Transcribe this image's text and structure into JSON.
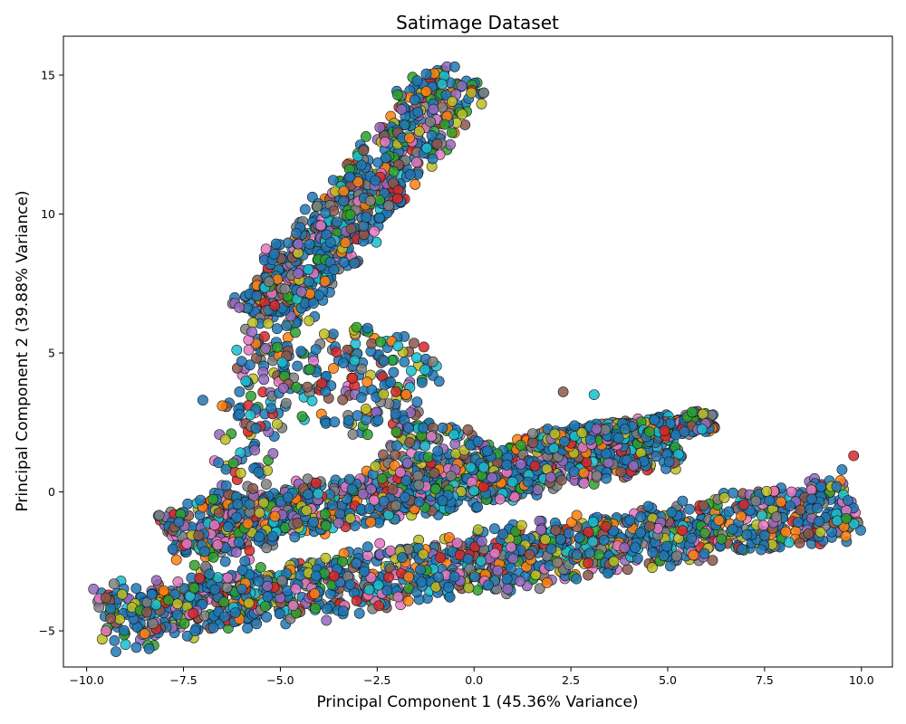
{
  "chart_data": {
    "type": "scatter",
    "title": "Satimage Dataset",
    "xlabel": "Principal Component 1 (45.36% Variance)",
    "ylabel": "Principal Component 2 (39.88% Variance)",
    "xlim": [
      -10.6,
      10.8
    ],
    "ylim": [
      -6.3,
      16.4
    ],
    "xticks": [
      -10.0,
      -7.5,
      -5.0,
      -2.5,
      0.0,
      2.5,
      5.0,
      7.5,
      10.0
    ],
    "xtick_labels": [
      "−10.0",
      "−7.5",
      "−5.0",
      "−2.5",
      "0.0",
      "2.5",
      "5.0",
      "7.5",
      "10.0"
    ],
    "yticks": [
      -5,
      0,
      5,
      10,
      15
    ],
    "ytick_labels": [
      "−5",
      "0",
      "5",
      "10",
      "15"
    ],
    "grid": false,
    "legend": "none",
    "palette": [
      "#1f77b4",
      "#ff7f0e",
      "#2ca02c",
      "#d62728",
      "#9467bd",
      "#8c564b",
      "#e377c2",
      "#7f7f7f",
      "#bcbd22",
      "#17becf"
    ],
    "dominant_color": "#1f77b4",
    "regions": [
      {
        "kind": "band",
        "x0": -9.6,
        "y0": -4.6,
        "x1": 9.8,
        "y1": -0.5,
        "halfwidth": 1.3,
        "count": 1500
      },
      {
        "kind": "band",
        "x0": -8.0,
        "y0": -1.6,
        "x1": 5.2,
        "y1": 1.9,
        "halfwidth": 1.1,
        "count": 1200
      },
      {
        "kind": "band",
        "x0": 1.5,
        "y0": 1.8,
        "x1": 6.2,
        "y1": 2.6,
        "halfwidth": 0.45,
        "count": 320
      },
      {
        "kind": "band",
        "x0": -5.4,
        "y0": 6.2,
        "x1": -0.4,
        "y1": 15.0,
        "halfwidth": 1.15,
        "count": 720
      },
      {
        "kind": "band",
        "x0": -6.6,
        "y0": -3.6,
        "x1": -4.8,
        "y1": 9.0,
        "halfwidth": 0.9,
        "count": 240
      },
      {
        "kind": "blob",
        "cx": -3.0,
        "cy": 4.0,
        "rx": 2.2,
        "ry": 2.0,
        "count": 180
      },
      {
        "kind": "blob",
        "cx": -1.0,
        "cy": 1.0,
        "rx": 1.6,
        "ry": 1.5,
        "count": 160
      }
    ],
    "notable_points": [
      {
        "x": 9.8,
        "y": 1.3
      },
      {
        "x": 9.5,
        "y": 0.8
      },
      {
        "x": 2.3,
        "y": 3.6
      },
      {
        "x": 3.1,
        "y": 3.5
      },
      {
        "x": -0.7,
        "y": 15.3
      },
      {
        "x": -0.5,
        "y": 15.3
      },
      {
        "x": -9.6,
        "y": -5.3
      },
      {
        "x": -9.5,
        "y": -5.0
      },
      {
        "x": -7.2,
        "y": -5.0
      },
      {
        "x": -8.5,
        "y": -5.1
      },
      {
        "x": -6.5,
        "y": 3.1
      },
      {
        "x": -7.0,
        "y": 3.3
      }
    ]
  }
}
